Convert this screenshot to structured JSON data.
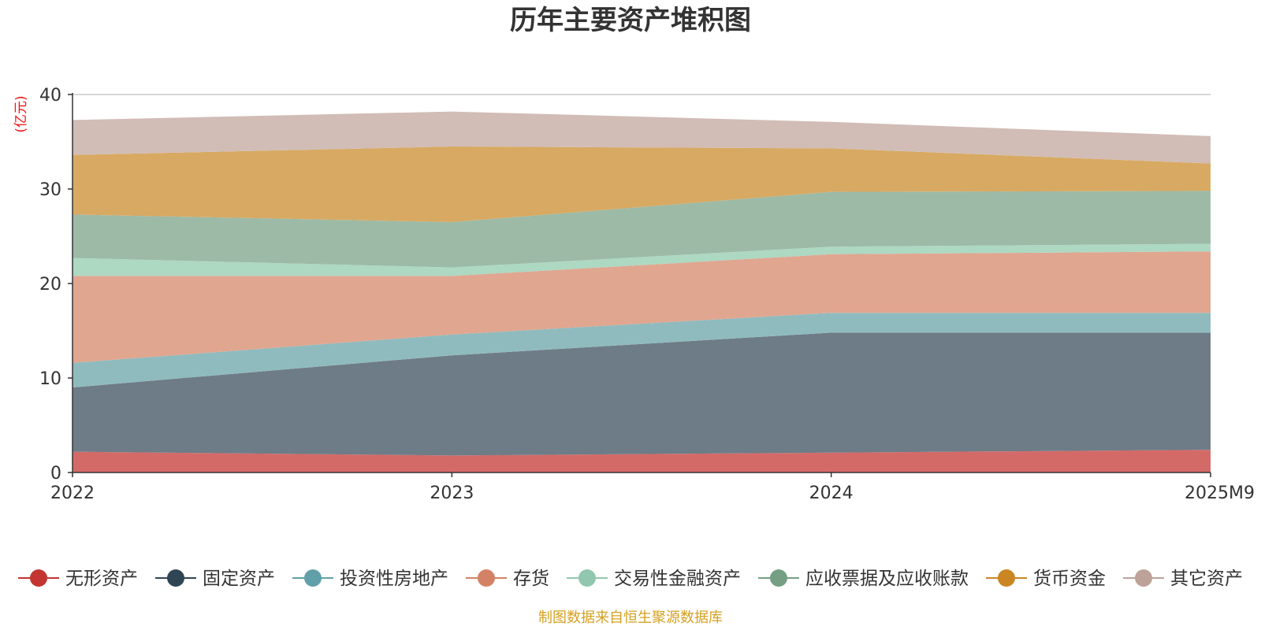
{
  "chart_data": {
    "type": "area",
    "stacked": true,
    "title": "历年主要资产堆积图",
    "ylabel": "(亿元)",
    "xlabel": "",
    "categories": [
      "2022",
      "2023",
      "2024",
      "2025M9"
    ],
    "ylim": [
      0,
      40
    ],
    "yticks": [
      0,
      10,
      20,
      30,
      40
    ],
    "grid": true,
    "legend_position": "bottom",
    "series": [
      {
        "name": "无形资产",
        "color": "#c23531",
        "fill": "#d46a68",
        "values": [
          2.2,
          1.8,
          2.1,
          2.4
        ]
      },
      {
        "name": "固定资产",
        "color": "#2f4554",
        "fill": "#6e7c87",
        "values": [
          6.8,
          10.6,
          12.7,
          12.4
        ]
      },
      {
        "name": "投资性房地产",
        "color": "#61a0a8",
        "fill": "#90bbbe",
        "values": [
          2.6,
          2.2,
          2.1,
          2.1
        ]
      },
      {
        "name": "存货",
        "color": "#d48265",
        "fill": "#e0a690",
        "values": [
          9.2,
          6.2,
          6.2,
          6.5
        ]
      },
      {
        "name": "交易性金融资产",
        "color": "#91c7ae",
        "fill": "#add8c2",
        "values": [
          1.9,
          0.9,
          0.8,
          0.8
        ]
      },
      {
        "name": "应收票据及应收账款",
        "color": "#749f83",
        "fill": "#9dbaa6",
        "values": [
          4.6,
          4.8,
          5.8,
          5.6
        ]
      },
      {
        "name": "货币资金",
        "color": "#ca8622",
        "fill": "#d8a962",
        "values": [
          6.3,
          8.0,
          4.6,
          2.9
        ]
      },
      {
        "name": "其它资产",
        "color": "#bda29a",
        "fill": "#d1bdb6",
        "values": [
          3.7,
          3.7,
          2.8,
          2.9
        ]
      }
    ]
  },
  "footer": {
    "source": "制图数据来自恒生聚源数据库"
  }
}
